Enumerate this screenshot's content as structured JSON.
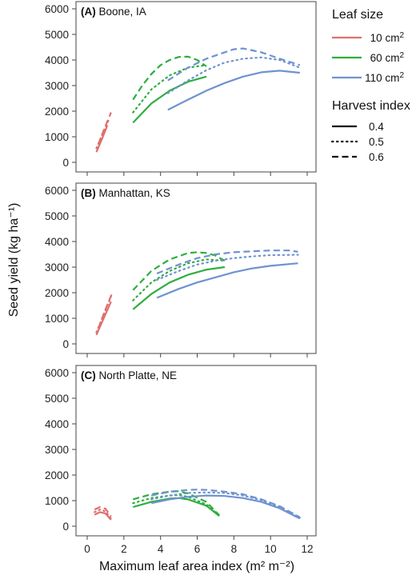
{
  "chart_data": {
    "type": "line",
    "ylabel": "Seed yield (kg ha⁻¹)",
    "xlabel": "Maximum leaf area index (m² m⁻²)",
    "xlim": [
      0,
      12
    ],
    "ylim": [
      0,
      6000
    ],
    "x_ticks": [
      "0",
      "2",
      "4",
      "6",
      "8",
      "10",
      "12"
    ],
    "y_ticks": [
      "0",
      "1000",
      "2000",
      "3000",
      "4000",
      "5000",
      "6000"
    ],
    "grid": false,
    "legend": {
      "placement": "right",
      "color_title": "Leaf size",
      "color_entries": [
        {
          "label": "10 cm²",
          "color": "#e06f6f"
        },
        {
          "label": "60 cm²",
          "color": "#2eae3f"
        },
        {
          "label": "110 cm²",
          "color": "#6f93cf"
        }
      ],
      "style_title": "Harvest index",
      "style_entries": [
        {
          "label": "0.4",
          "dash": "solid"
        },
        {
          "label": "0.5",
          "dash": "dotted"
        },
        {
          "label": "0.6",
          "dash": "dashed"
        }
      ]
    },
    "panels": [
      {
        "title": "(A) Boone, IA",
        "series": [
          {
            "leaf_size": "10",
            "hi": "0.4",
            "x": [
              0.5,
              0.8,
              1.1
            ],
            "y": [
              400,
              900,
              1450
            ]
          },
          {
            "leaf_size": "10",
            "hi": "0.5",
            "x": [
              0.5,
              0.8,
              1.2
            ],
            "y": [
              550,
              1050,
              1700
            ]
          },
          {
            "leaf_size": "10",
            "hi": "0.6",
            "x": [
              0.6,
              0.9,
              1.3
            ],
            "y": [
              700,
              1250,
              1950
            ]
          },
          {
            "leaf_size": "60",
            "hi": "0.4",
            "x": [
              2.5,
              3.5,
              4.5,
              5.5,
              6.5
            ],
            "y": [
              1550,
              2300,
              2800,
              3150,
              3350
            ]
          },
          {
            "leaf_size": "60",
            "hi": "0.5",
            "x": [
              2.5,
              3.5,
              4.5,
              5.5,
              6.5
            ],
            "y": [
              1950,
              2850,
              3400,
              3700,
              3800
            ]
          },
          {
            "leaf_size": "60",
            "hi": "0.6",
            "x": [
              2.5,
              3.0,
              3.5,
              4.0,
              4.5,
              5.0,
              5.5,
              6.0,
              6.5
            ],
            "y": [
              2450,
              3000,
              3450,
              3800,
              4000,
              4120,
              4130,
              4000,
              3750
            ]
          },
          {
            "leaf_size": "110",
            "hi": "0.4",
            "x": [
              4.4,
              5.5,
              6.5,
              7.5,
              8.5,
              9.5,
              10.5,
              11.6
            ],
            "y": [
              2050,
              2450,
              2800,
              3100,
              3350,
              3520,
              3580,
              3500
            ]
          },
          {
            "leaf_size": "110",
            "hi": "0.5",
            "x": [
              4.4,
              5.5,
              6.5,
              7.5,
              8.5,
              9.5,
              10.5,
              11.6
            ],
            "y": [
              2700,
              3200,
              3600,
              3900,
              4050,
              4100,
              4000,
              3700
            ]
          },
          {
            "leaf_size": "110",
            "hi": "0.6",
            "x": [
              4.4,
              5.5,
              6.5,
              7.5,
              8.0,
              8.5,
              9.5,
              10.5,
              11.6
            ],
            "y": [
              3200,
              3700,
              4050,
              4300,
              4420,
              4450,
              4300,
              4050,
              3800
            ]
          }
        ]
      },
      {
        "title": "(B) Manhattan, KS",
        "series": [
          {
            "leaf_size": "10",
            "hi": "0.4",
            "x": [
              0.5,
              0.9,
              1.3
            ],
            "y": [
              350,
              1000,
              1650
            ]
          },
          {
            "leaf_size": "10",
            "hi": "0.5",
            "x": [
              0.5,
              0.9,
              1.3
            ],
            "y": [
              450,
              1150,
              1850
            ]
          },
          {
            "leaf_size": "10",
            "hi": "0.6",
            "x": [
              0.6,
              1.0,
              1.4
            ],
            "y": [
              600,
              1350,
              2050
            ]
          },
          {
            "leaf_size": "60",
            "hi": "0.4",
            "x": [
              2.5,
              3.5,
              4.5,
              5.5,
              6.5,
              7.5
            ],
            "y": [
              1350,
              1950,
              2400,
              2700,
              2900,
              3000
            ]
          },
          {
            "leaf_size": "60",
            "hi": "0.5",
            "x": [
              2.5,
              3.5,
              4.5,
              5.5,
              6.5,
              7.5
            ],
            "y": [
              1700,
              2400,
              2850,
              3150,
              3300,
              3250
            ]
          },
          {
            "leaf_size": "60",
            "hi": "0.6",
            "x": [
              2.5,
              3.5,
              4.5,
              5.5,
              6.0,
              6.5,
              7.0,
              7.5
            ],
            "y": [
              2100,
              2850,
              3300,
              3550,
              3580,
              3550,
              3450,
              3250
            ]
          },
          {
            "leaf_size": "110",
            "hi": "0.4",
            "x": [
              3.8,
              5.0,
              6.0,
              7.0,
              8.0,
              9.0,
              10.0,
              11.5
            ],
            "y": [
              1800,
              2150,
              2400,
              2600,
              2800,
              2950,
              3050,
              3150
            ]
          },
          {
            "leaf_size": "110",
            "hi": "0.5",
            "x": [
              3.8,
              5.0,
              6.0,
              7.0,
              8.0,
              9.0,
              10.0,
              11.5
            ],
            "y": [
              2500,
              2850,
              3100,
              3250,
              3350,
              3420,
              3470,
              3480
            ]
          },
          {
            "leaf_size": "110",
            "hi": "0.6",
            "x": [
              3.8,
              5.0,
              6.0,
              7.0,
              8.0,
              9.0,
              10.0,
              11.0,
              11.5
            ],
            "y": [
              2750,
              3100,
              3350,
              3500,
              3580,
              3620,
              3650,
              3650,
              3600
            ]
          }
        ]
      },
      {
        "title": "(C) North Platte, NE",
        "series": [
          {
            "leaf_size": "10",
            "hi": "0.4",
            "x": [
              0.4,
              0.7,
              1.0,
              1.3
            ],
            "y": [
              450,
              550,
              500,
              250
            ]
          },
          {
            "leaf_size": "10",
            "hi": "0.5",
            "x": [
              0.4,
              0.7,
              1.0,
              1.3
            ],
            "y": [
              550,
              650,
              580,
              300
            ]
          },
          {
            "leaf_size": "10",
            "hi": "0.6",
            "x": [
              0.4,
              0.7,
              1.0,
              1.3
            ],
            "y": [
              650,
              750,
              680,
              380
            ]
          },
          {
            "leaf_size": "60",
            "hi": "0.4",
            "x": [
              2.5,
              3.5,
              4.5,
              5.0,
              5.5,
              6.5,
              7.2
            ],
            "y": [
              750,
              950,
              1080,
              1100,
              1050,
              800,
              400
            ]
          },
          {
            "leaf_size": "60",
            "hi": "0.5",
            "x": [
              2.5,
              3.5,
              4.5,
              5.0,
              5.5,
              6.5,
              7.2
            ],
            "y": [
              900,
              1100,
              1200,
              1220,
              1150,
              850,
              420
            ]
          },
          {
            "leaf_size": "60",
            "hi": "0.6",
            "x": [
              2.5,
              3.5,
              4.5,
              5.0,
              5.5,
              6.5,
              7.2
            ],
            "y": [
              1050,
              1250,
              1350,
              1370,
              1280,
              950,
              430
            ]
          },
          {
            "leaf_size": "110",
            "hi": "0.4",
            "x": [
              3.5,
              4.5,
              5.5,
              6.5,
              7.5,
              8.5,
              9.5,
              10.5,
              11.6
            ],
            "y": [
              900,
              1050,
              1150,
              1200,
              1180,
              1100,
              950,
              700,
              300
            ]
          },
          {
            "leaf_size": "110",
            "hi": "0.5",
            "x": [
              3.5,
              4.5,
              5.5,
              6.5,
              7.5,
              8.5,
              9.5,
              10.5,
              11.6
            ],
            "y": [
              1050,
              1200,
              1300,
              1320,
              1300,
              1200,
              1020,
              750,
              330
            ]
          },
          {
            "leaf_size": "110",
            "hi": "0.6",
            "x": [
              3.5,
              4.5,
              5.5,
              6.0,
              6.5,
              7.5,
              8.5,
              9.5,
              10.5,
              11.6
            ],
            "y": [
              1200,
              1350,
              1420,
              1430,
              1420,
              1350,
              1250,
              1050,
              780,
              350
            ]
          }
        ]
      }
    ]
  }
}
